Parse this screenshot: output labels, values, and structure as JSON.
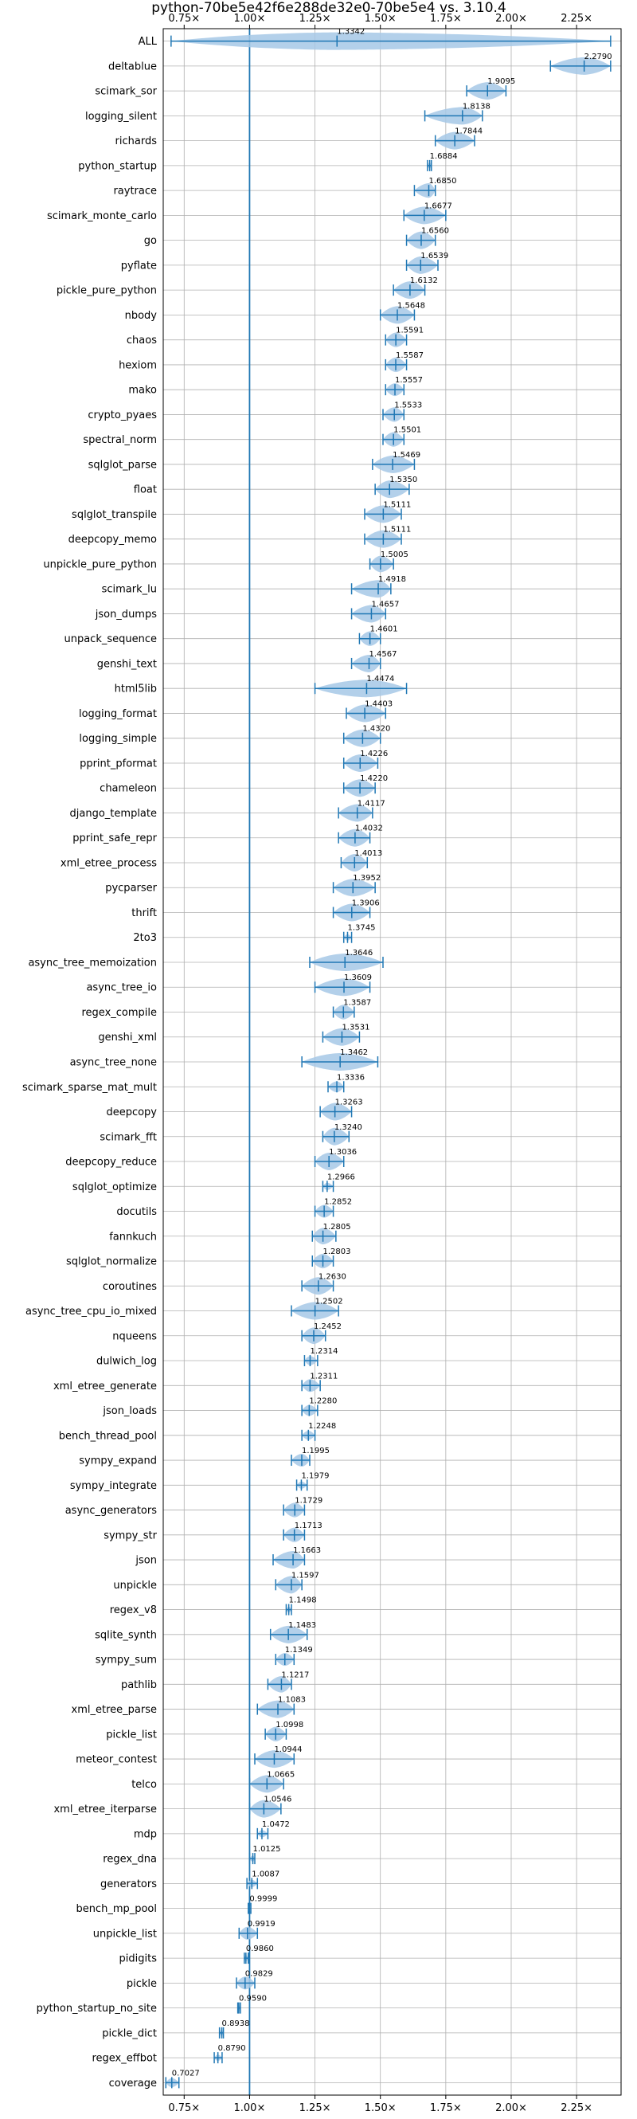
{
  "chart_data": {
    "type": "violin",
    "title": "python-70be5e42f6e288de32e0-70be5e4 vs. 3.10.4",
    "xlabel": "",
    "ylabel": "",
    "xlim": [
      0.67,
      2.42
    ],
    "xticks": [
      0.75,
      1.0,
      1.25,
      1.5,
      1.75,
      2.0,
      2.25
    ],
    "xtick_labels": [
      "0.75×",
      "1.00×",
      "1.25×",
      "1.50×",
      "1.75×",
      "2.00×",
      "2.25×"
    ],
    "reference_line": 1.0,
    "grid": true,
    "colors": {
      "violin": "#1f77b4",
      "violin_fill": "#a6c8e6",
      "refline": "#1f77b4"
    },
    "categories": [
      "ALL",
      "deltablue",
      "scimark_sor",
      "logging_silent",
      "richards",
      "python_startup",
      "raytrace",
      "scimark_monte_carlo",
      "go",
      "pyflate",
      "pickle_pure_python",
      "nbody",
      "chaos",
      "hexiom",
      "mako",
      "crypto_pyaes",
      "spectral_norm",
      "sqlglot_parse",
      "float",
      "sqlglot_transpile",
      "deepcopy_memo",
      "unpickle_pure_python",
      "scimark_lu",
      "json_dumps",
      "unpack_sequence",
      "genshi_text",
      "html5lib",
      "logging_format",
      "logging_simple",
      "pprint_pformat",
      "chameleon",
      "django_template",
      "pprint_safe_repr",
      "xml_etree_process",
      "pycparser",
      "thrift",
      "2to3",
      "async_tree_memoization",
      "async_tree_io",
      "regex_compile",
      "genshi_xml",
      "async_tree_none",
      "scimark_sparse_mat_mult",
      "deepcopy",
      "scimark_fft",
      "deepcopy_reduce",
      "sqlglot_optimize",
      "docutils",
      "fannkuch",
      "sqlglot_normalize",
      "coroutines",
      "async_tree_cpu_io_mixed",
      "nqueens",
      "dulwich_log",
      "xml_etree_generate",
      "json_loads",
      "bench_thread_pool",
      "sympy_expand",
      "sympy_integrate",
      "async_generators",
      "sympy_str",
      "json",
      "unpickle",
      "regex_v8",
      "sqlite_synth",
      "sympy_sum",
      "pathlib",
      "xml_etree_parse",
      "pickle_list",
      "meteor_contest",
      "telco",
      "xml_etree_iterparse",
      "mdp",
      "regex_dna",
      "generators",
      "bench_mp_pool",
      "unpickle_list",
      "pidigits",
      "pickle",
      "python_startup_no_site",
      "pickle_dict",
      "regex_effbot",
      "coverage"
    ],
    "values": [
      1.3342,
      2.279,
      1.9095,
      1.8138,
      1.7844,
      1.6884,
      1.685,
      1.6677,
      1.656,
      1.6539,
      1.6132,
      1.5648,
      1.5591,
      1.5587,
      1.5557,
      1.5533,
      1.5501,
      1.5469,
      1.535,
      1.5111,
      1.5111,
      1.5005,
      1.4918,
      1.4657,
      1.4601,
      1.4567,
      1.4474,
      1.4403,
      1.432,
      1.4226,
      1.422,
      1.4117,
      1.4032,
      1.4013,
      1.3952,
      1.3906,
      1.3745,
      1.3646,
      1.3609,
      1.3587,
      1.3531,
      1.3462,
      1.3336,
      1.3263,
      1.324,
      1.3036,
      1.2966,
      1.2852,
      1.2805,
      1.2803,
      1.263,
      1.2502,
      1.2452,
      1.2314,
      1.2311,
      1.228,
      1.2248,
      1.1995,
      1.1979,
      1.1729,
      1.1713,
      1.1663,
      1.1597,
      1.1498,
      1.1483,
      1.1349,
      1.1217,
      1.1083,
      1.0998,
      1.0944,
      1.0665,
      1.0546,
      1.0472,
      1.0125,
      1.0087,
      0.9999,
      0.9919,
      0.986,
      0.9829,
      0.959,
      0.8938,
      0.879,
      0.7027
    ],
    "value_labels": [
      "1.3342",
      "2.2790",
      "1.9095",
      "1.8138",
      "1.7844",
      "1.6884",
      "1.6850",
      "1.6677",
      "1.6560",
      "1.6539",
      "1.6132",
      "1.5648",
      "1.5591",
      "1.5587",
      "1.5557",
      "1.5533",
      "1.5501",
      "1.5469",
      "1.5350",
      "1.5111",
      "1.5111",
      "1.5005",
      "1.4918",
      "1.4657",
      "1.4601",
      "1.4567",
      "1.4474",
      "1.4403",
      "1.4320",
      "1.4226",
      "1.4220",
      "1.4117",
      "1.4032",
      "1.4013",
      "1.3952",
      "1.3906",
      "1.3745",
      "1.3646",
      "1.3609",
      "1.3587",
      "1.3531",
      "1.3462",
      "1.3336",
      "1.3263",
      "1.3240",
      "1.3036",
      "1.2966",
      "1.2852",
      "1.2805",
      "1.2803",
      "1.2630",
      "1.2502",
      "1.2452",
      "1.2314",
      "1.2311",
      "1.2280",
      "1.2248",
      "1.1995",
      "1.1979",
      "1.1729",
      "1.1713",
      "1.1663",
      "1.1597",
      "1.1498",
      "1.1483",
      "1.1349",
      "1.1217",
      "1.1083",
      "1.0998",
      "1.0944",
      "1.0665",
      "1.0546",
      "1.0472",
      "1.0125",
      "1.0087",
      "0.9999",
      "0.9919",
      "0.9860",
      "0.9829",
      "0.9590",
      "0.8938",
      "0.8790",
      "0.7027"
    ],
    "ranges": [
      [
        0.7,
        2.38
      ],
      [
        2.15,
        2.38
      ],
      [
        1.83,
        1.98
      ],
      [
        1.67,
        1.89
      ],
      [
        1.71,
        1.86
      ],
      [
        1.68,
        1.695
      ],
      [
        1.63,
        1.71
      ],
      [
        1.59,
        1.75
      ],
      [
        1.6,
        1.71
      ],
      [
        1.6,
        1.72
      ],
      [
        1.55,
        1.67
      ],
      [
        1.5,
        1.63
      ],
      [
        1.52,
        1.6
      ],
      [
        1.52,
        1.6
      ],
      [
        1.52,
        1.59
      ],
      [
        1.51,
        1.59
      ],
      [
        1.51,
        1.59
      ],
      [
        1.47,
        1.63
      ],
      [
        1.48,
        1.61
      ],
      [
        1.44,
        1.58
      ],
      [
        1.44,
        1.58
      ],
      [
        1.46,
        1.55
      ],
      [
        1.39,
        1.54
      ],
      [
        1.39,
        1.52
      ],
      [
        1.42,
        1.5
      ],
      [
        1.39,
        1.5
      ],
      [
        1.25,
        1.6
      ],
      [
        1.37,
        1.52
      ],
      [
        1.36,
        1.5
      ],
      [
        1.36,
        1.49
      ],
      [
        1.36,
        1.48
      ],
      [
        1.34,
        1.47
      ],
      [
        1.34,
        1.46
      ],
      [
        1.35,
        1.45
      ],
      [
        1.32,
        1.48
      ],
      [
        1.32,
        1.46
      ],
      [
        1.36,
        1.39
      ],
      [
        1.23,
        1.51
      ],
      [
        1.25,
        1.46
      ],
      [
        1.32,
        1.4
      ],
      [
        1.28,
        1.42
      ],
      [
        1.2,
        1.49
      ],
      [
        1.3,
        1.36
      ],
      [
        1.27,
        1.39
      ],
      [
        1.28,
        1.38
      ],
      [
        1.25,
        1.36
      ],
      [
        1.28,
        1.32
      ],
      [
        1.25,
        1.32
      ],
      [
        1.24,
        1.33
      ],
      [
        1.24,
        1.32
      ],
      [
        1.2,
        1.32
      ],
      [
        1.16,
        1.34
      ],
      [
        1.2,
        1.29
      ],
      [
        1.21,
        1.26
      ],
      [
        1.2,
        1.27
      ],
      [
        1.2,
        1.26
      ],
      [
        1.2,
        1.25
      ],
      [
        1.16,
        1.23
      ],
      [
        1.18,
        1.22
      ],
      [
        1.13,
        1.21
      ],
      [
        1.13,
        1.21
      ],
      [
        1.09,
        1.21
      ],
      [
        1.1,
        1.2
      ],
      [
        1.14,
        1.16
      ],
      [
        1.08,
        1.22
      ],
      [
        1.1,
        1.17
      ],
      [
        1.07,
        1.16
      ],
      [
        1.03,
        1.17
      ],
      [
        1.06,
        1.14
      ],
      [
        1.02,
        1.17
      ],
      [
        1.0,
        1.13
      ],
      [
        1.0,
        1.12
      ],
      [
        1.03,
        1.07
      ],
      [
        1.0,
        1.02
      ],
      [
        0.99,
        1.03
      ],
      [
        0.995,
        1.005
      ],
      [
        0.96,
        1.03
      ],
      [
        0.98,
        0.995
      ],
      [
        0.95,
        1.02
      ],
      [
        0.955,
        0.965
      ],
      [
        0.885,
        0.9
      ],
      [
        0.865,
        0.895
      ],
      [
        0.68,
        0.73
      ]
    ]
  }
}
